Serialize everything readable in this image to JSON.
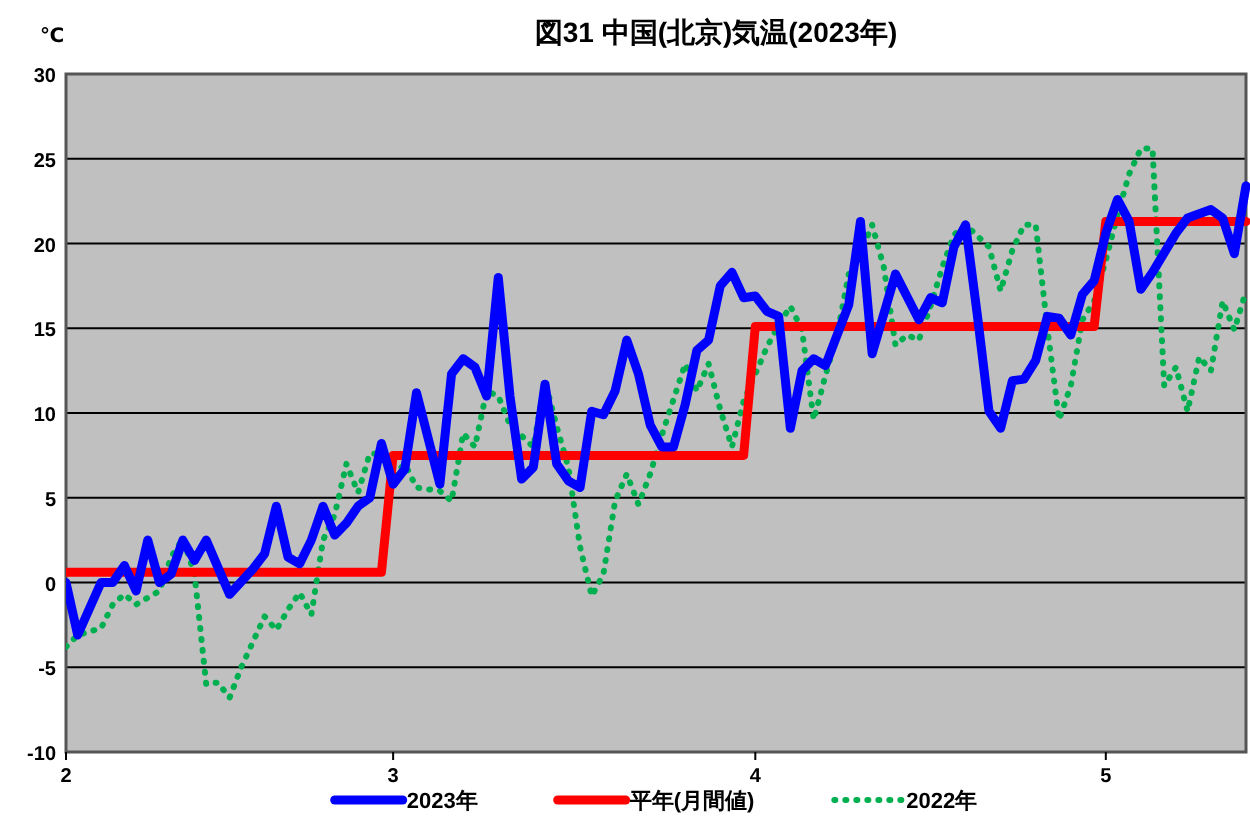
{
  "chart_data": {
    "type": "line",
    "title": "図31 中国(北京)気温(2023年)",
    "ylabel": "℃",
    "xlim": [
      "--02-01",
      "--05-13"
    ],
    "xticks": [
      {
        "value": "--02-01",
        "label": "2"
      },
      {
        "value": "--03-01",
        "label": "3"
      },
      {
        "value": "--04-01",
        "label": "4"
      },
      {
        "value": "--05-01",
        "label": "5"
      }
    ],
    "ylim": [
      -10,
      30
    ],
    "yticks": [
      -10,
      -5,
      0,
      5,
      10,
      15,
      20,
      25,
      30
    ],
    "grid": "y",
    "legend": "bottom",
    "series": [
      {
        "name": "2023年",
        "color": "#0000ff",
        "line_style": "solid",
        "x": [
          "--02-01",
          "--02-02",
          "--02-04",
          "--02-05",
          "--02-06",
          "--02-07",
          "--02-08",
          "--02-09",
          "--02-10",
          "--02-11",
          "--02-12",
          "--02-13",
          "--02-15",
          "--02-17",
          "--02-18",
          "--02-19",
          "--02-20",
          "--02-21",
          "--02-22",
          "--02-23",
          "--02-24",
          "--02-25",
          "--02-26",
          "--02-27",
          "--02-28",
          "--03-01",
          "--03-02",
          "--03-03",
          "--03-05",
          "--03-06",
          "--03-07",
          "--03-08",
          "--03-09",
          "--03-10",
          "--03-11",
          "--03-12",
          "--03-13",
          "--03-14",
          "--03-15",
          "--03-16",
          "--03-17",
          "--03-18",
          "--03-19",
          "--03-20",
          "--03-21",
          "--03-22",
          "--03-23",
          "--03-24",
          "--03-25",
          "--03-26",
          "--03-27",
          "--03-28",
          "--03-29",
          "--03-30",
          "--03-31",
          "--04-01",
          "--04-02",
          "--04-03",
          "--04-04",
          "--04-05",
          "--04-06",
          "--04-07",
          "--04-09",
          "--04-10",
          "--04-11",
          "--04-13",
          "--04-15",
          "--04-16",
          "--04-17",
          "--04-18",
          "--04-19",
          "--04-20",
          "--04-21",
          "--04-22",
          "--04-23",
          "--04-24",
          "--04-25",
          "--04-26",
          "--04-27",
          "--04-28",
          "--04-29",
          "--04-30",
          "--05-01",
          "--05-02",
          "--05-03",
          "--05-04",
          "--05-05",
          "--05-07",
          "--05-08",
          "--05-10",
          "--05-11",
          "--05-12",
          "--05-13"
        ],
        "values": [
          0,
          -3.1,
          0,
          0,
          1,
          -0.5,
          2.5,
          0,
          0.5,
          2.5,
          1.3,
          2.5,
          -0.7,
          0.8,
          1.7,
          4.5,
          1.5,
          1.1,
          2.5,
          4.5,
          2.8,
          3.5,
          4.5,
          5,
          8.2,
          5.8,
          6.7,
          11.2,
          5.8,
          12.3,
          13.2,
          12.7,
          11,
          18,
          11,
          6.1,
          6.8,
          11.7,
          7,
          6,
          5.6,
          10.1,
          9.9,
          11.3,
          14.3,
          12.3,
          9.3,
          8,
          8,
          10.5,
          13.7,
          14.3,
          17.5,
          18.3,
          16.8,
          16.9,
          16,
          15.7,
          9.1,
          12.5,
          13.2,
          12.8,
          16.4,
          21.3,
          13.5,
          18.2,
          15.5,
          16.8,
          16.5,
          19.8,
          21.1,
          15.8,
          10.1,
          9.1,
          11.9,
          12,
          13.1,
          15.7,
          15.6,
          14.6,
          17,
          17.8,
          20.6,
          22.6,
          21.3,
          17.3,
          18.3,
          20.6,
          21.5,
          22,
          21.5,
          19.4,
          23.4
        ]
      },
      {
        "name": "平年(月間値)",
        "color": "#ff0000",
        "line_style": "solid",
        "x": [
          "--02-01",
          "--02-28",
          "--03-01",
          "--03-31",
          "--04-01",
          "--04-30",
          "--05-01",
          "--05-13"
        ],
        "values": [
          0.6,
          0.6,
          7.5,
          7.5,
          15.1,
          15.1,
          21.3,
          21.3
        ]
      },
      {
        "name": "2022年",
        "color": "#00b050",
        "line_style": "dotted",
        "x": [
          "--02-01",
          "--02-02",
          "--02-04",
          "--02-05",
          "--02-06",
          "--02-07",
          "--02-09",
          "--02-10",
          "--02-11",
          "--02-12",
          "--02-13",
          "--02-14",
          "--02-15",
          "--02-16",
          "--02-18",
          "--02-19",
          "--02-20",
          "--02-21",
          "--02-22",
          "--02-23",
          "--02-24",
          "--02-25",
          "--02-26",
          "--02-27",
          "--02-28",
          "--03-01",
          "--03-02",
          "--03-03",
          "--03-05",
          "--03-06",
          "--03-07",
          "--03-08",
          "--03-09",
          "--03-10",
          "--03-11",
          "--03-13",
          "--03-14",
          "--03-15",
          "--03-16",
          "--03-17",
          "--03-18",
          "--03-19",
          "--03-20",
          "--03-21",
          "--03-22",
          "--03-23",
          "--03-24",
          "--03-26",
          "--03-27",
          "--03-28",
          "--03-29",
          "--03-30",
          "--03-31",
          "--04-02",
          "--04-03",
          "--04-04",
          "--04-05",
          "--04-06",
          "--04-07",
          "--04-08",
          "--04-09",
          "--04-10",
          "--04-11",
          "--04-12",
          "--04-13",
          "--04-14",
          "--04-15",
          "--04-16",
          "--04-17",
          "--04-18",
          "--04-19",
          "--04-21",
          "--04-22",
          "--04-23",
          "--04-24",
          "--04-25",
          "--04-26",
          "--04-27",
          "--04-28",
          "--04-29",
          "--04-30",
          "--05-01",
          "--05-02",
          "--05-03",
          "--05-04",
          "--05-05",
          "--05-06",
          "--05-07",
          "--05-08",
          "--05-09",
          "--05-10",
          "--05-11",
          "--05-12",
          "--05-13"
        ],
        "values": [
          -3.8,
          -3.1,
          -2.7,
          -1.3,
          -0.7,
          -1.3,
          -0.5,
          1.5,
          2.6,
          0.5,
          -6,
          -5.9,
          -6.8,
          -5,
          -2,
          -2.8,
          -1.6,
          -0.6,
          -1.9,
          2.5,
          4,
          7,
          5.3,
          7.6,
          7.6,
          6.3,
          7,
          5.6,
          5.4,
          4.8,
          8.8,
          8,
          11.3,
          11,
          9.3,
          8,
          11.9,
          9.2,
          6.8,
          2.1,
          -0.8,
          0.5,
          4.8,
          6.4,
          4.6,
          6.4,
          8.7,
          12.9,
          11.3,
          12.9,
          10.2,
          8,
          10.7,
          13.9,
          15.2,
          16.3,
          14.9,
          9.6,
          12.2,
          14.6,
          18.2,
          19.4,
          21.1,
          18.6,
          14,
          14.6,
          14.3,
          16.3,
          18.6,
          20.5,
          21.1,
          19.8,
          17.2,
          19.6,
          21.1,
          21.1,
          15,
          9.6,
          11.6,
          15.5,
          16.6,
          19,
          21.7,
          24.1,
          25.6,
          25.6,
          11.6,
          12.7,
          10.1,
          13.3,
          12.5,
          16.6,
          14.9,
          17.2
        ]
      }
    ]
  }
}
